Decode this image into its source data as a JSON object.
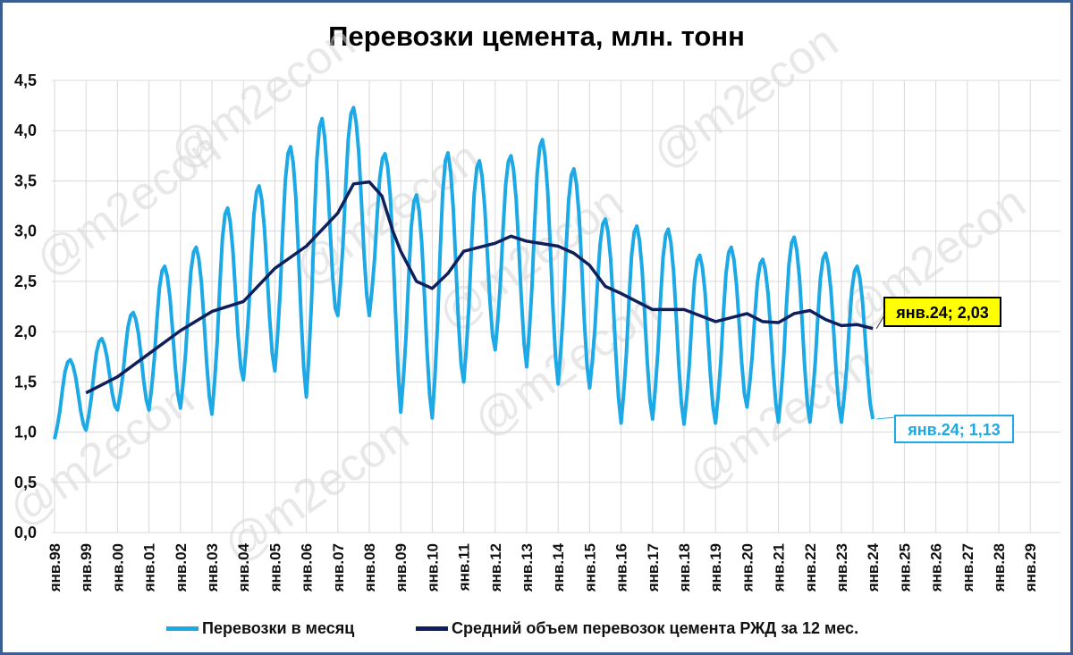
{
  "chart_data": {
    "type": "line",
    "title": "Перевозки цемента, млн. тонн",
    "watermark": "@m2econ",
    "ylim": [
      0,
      4.5
    ],
    "yticks": [
      "0,0",
      "0,5",
      "1,0",
      "1,5",
      "2,0",
      "2,5",
      "3,0",
      "3,5",
      "4,0",
      "4,5"
    ],
    "xticks": [
      "янв.98",
      "янв.99",
      "янв.00",
      "янв.01",
      "янв.02",
      "янв.03",
      "янв.04",
      "янв.05",
      "янв.06",
      "янв.07",
      "янв.08",
      "янв.09",
      "янв.10",
      "янв.11",
      "янв.12",
      "янв.13",
      "янв.14",
      "янв.15",
      "янв.16",
      "янв.17",
      "янв.18",
      "янв.19",
      "янв.20",
      "янв.21",
      "янв.22",
      "янв.23",
      "янв.24",
      "янв.25",
      "янв.26",
      "янв.27",
      "янв.28",
      "янв.29"
    ],
    "grid": true,
    "legend_position": "bottom",
    "colors": {
      "monthly": "#1ca9e6",
      "average": "#0f1f5c",
      "frame": "#3b5f92",
      "avg_label_bg": "#ffff00"
    },
    "series": [
      {
        "name": "Перевозки в месяц",
        "year_stats": [
          {
            "year": 1998,
            "jan": 0.93,
            "peak": 1.72
          },
          {
            "year": 1999,
            "jan": 1.02,
            "peak": 1.93
          },
          {
            "year": 2000,
            "jan": 1.22,
            "peak": 2.19
          },
          {
            "year": 2001,
            "jan": 1.22,
            "peak": 2.65
          },
          {
            "year": 2002,
            "jan": 1.24,
            "peak": 2.84
          },
          {
            "year": 2003,
            "jan": 1.18,
            "peak": 3.23
          },
          {
            "year": 2004,
            "jan": 1.52,
            "peak": 3.45
          },
          {
            "year": 2005,
            "jan": 1.61,
            "peak": 3.84
          },
          {
            "year": 2006,
            "jan": 1.35,
            "peak": 4.12
          },
          {
            "year": 2007,
            "jan": 2.16,
            "peak": 4.23
          },
          {
            "year": 2008,
            "jan": 2.16,
            "peak": 3.77
          },
          {
            "year": 2009,
            "jan": 1.2,
            "peak": 3.36
          },
          {
            "year": 2010,
            "jan": 1.14,
            "peak": 3.78
          },
          {
            "year": 2011,
            "jan": 1.5,
            "peak": 3.7
          },
          {
            "year": 2012,
            "jan": 1.82,
            "peak": 3.75
          },
          {
            "year": 2013,
            "jan": 1.65,
            "peak": 3.91
          },
          {
            "year": 2014,
            "jan": 1.48,
            "peak": 3.62
          },
          {
            "year": 2015,
            "jan": 1.44,
            "peak": 3.12
          },
          {
            "year": 2016,
            "jan": 1.09,
            "peak": 3.05
          },
          {
            "year": 2017,
            "jan": 1.13,
            "peak": 3.02
          },
          {
            "year": 2018,
            "jan": 1.08,
            "peak": 2.76
          },
          {
            "year": 2019,
            "jan": 1.09,
            "peak": 2.84
          },
          {
            "year": 2020,
            "jan": 1.25,
            "peak": 2.72
          },
          {
            "year": 2021,
            "jan": 1.1,
            "peak": 2.94
          },
          {
            "year": 2022,
            "jan": 1.1,
            "peak": 2.78
          },
          {
            "year": 2023,
            "jan": 1.1,
            "peak": 2.65
          },
          {
            "year": 2024,
            "jan": 1.13,
            "peak": 1.13
          }
        ]
      },
      {
        "name": "Средний объем перевозок цемента РЖД за 12 мес.",
        "start": "янв.99",
        "end": "янв.24",
        "points": [
          [
            1999.0,
            1.39
          ],
          [
            2000.0,
            1.55
          ],
          [
            2001.0,
            1.78
          ],
          [
            2002.0,
            2.01
          ],
          [
            2003.0,
            2.2
          ],
          [
            2004.0,
            2.3
          ],
          [
            2005.0,
            2.63
          ],
          [
            2006.0,
            2.85
          ],
          [
            2007.0,
            3.18
          ],
          [
            2007.5,
            3.47
          ],
          [
            2008.0,
            3.49
          ],
          [
            2008.4,
            3.35
          ],
          [
            2008.75,
            3.0
          ],
          [
            2009.0,
            2.8
          ],
          [
            2009.5,
            2.5
          ],
          [
            2010.0,
            2.43
          ],
          [
            2010.5,
            2.58
          ],
          [
            2011.0,
            2.8
          ],
          [
            2012.0,
            2.88
          ],
          [
            2012.5,
            2.95
          ],
          [
            2013.0,
            2.9
          ],
          [
            2014.0,
            2.85
          ],
          [
            2014.5,
            2.78
          ],
          [
            2015.0,
            2.66
          ],
          [
            2015.5,
            2.45
          ],
          [
            2016.0,
            2.38
          ],
          [
            2017.0,
            2.22
          ],
          [
            2018.0,
            2.22
          ],
          [
            2019.0,
            2.1
          ],
          [
            2020.0,
            2.18
          ],
          [
            2020.5,
            2.1
          ],
          [
            2021.0,
            2.09
          ],
          [
            2021.5,
            2.18
          ],
          [
            2022.0,
            2.21
          ],
          [
            2022.5,
            2.12
          ],
          [
            2023.0,
            2.06
          ],
          [
            2023.5,
            2.07
          ],
          [
            2024.0,
            2.03
          ]
        ]
      }
    ],
    "annotations": [
      {
        "text": "янв.24; 2,03",
        "x": "янв.24",
        "y": 2.03,
        "series": "average"
      },
      {
        "text": "янв.24; 1,13",
        "x": "янв.24",
        "y": 1.13,
        "series": "monthly"
      }
    ]
  }
}
